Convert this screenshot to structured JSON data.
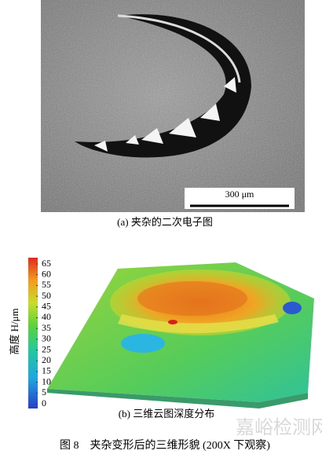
{
  "figure_a": {
    "scale_bar": "300 μm",
    "caption": "(a) 夹杂的二次电子图"
  },
  "figure_b": {
    "colorbar": {
      "label": "高度 H/μm",
      "lim": [
        0,
        65
      ],
      "ticks": [
        0,
        5,
        10,
        15,
        20,
        25,
        30,
        35,
        40,
        45,
        50,
        55,
        60,
        65
      ]
    },
    "caption": "(b) 三维云图深度分布"
  },
  "figure_caption": "图 8　夹杂变形后的三维形貌 (200X 下观察)",
  "watermark": "嘉峪检测网"
}
